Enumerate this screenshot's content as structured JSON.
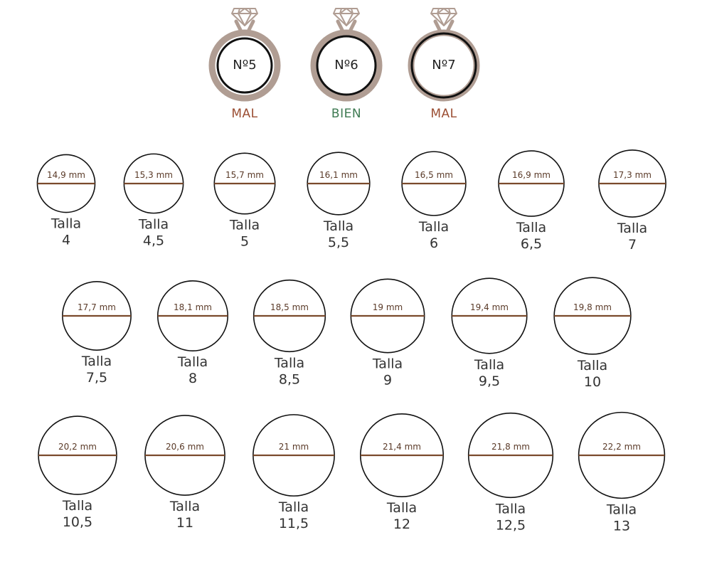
{
  "colors": {
    "ring_band": "#b09d93",
    "circle_stroke": "#111111",
    "diameter_line": "#7a4a2c",
    "diameter_text": "#5a3a28",
    "mal": "#9b4e33",
    "bien": "#3e7a52",
    "size_text": "#333333"
  },
  "size_word": "Talla",
  "comparison": [
    {
      "label": "Nº5",
      "verdict": "MAL",
      "verdict_color": "mal",
      "fit": "too-small"
    },
    {
      "label": "Nº6",
      "verdict": "BIEN",
      "verdict_color": "bien",
      "fit": "exact"
    },
    {
      "label": "Nº7",
      "verdict": "MAL",
      "verdict_color": "mal",
      "fit": "too-large"
    }
  ],
  "sizes": [
    {
      "size": "4",
      "diameter": "14,9 mm",
      "mm": 14.9
    },
    {
      "size": "4,5",
      "diameter": "15,3 mm",
      "mm": 15.3
    },
    {
      "size": "5",
      "diameter": "15,7 mm",
      "mm": 15.7
    },
    {
      "size": "5,5",
      "diameter": "16,1 mm",
      "mm": 16.1
    },
    {
      "size": "6",
      "diameter": "16,5 mm",
      "mm": 16.5
    },
    {
      "size": "6,5",
      "diameter": "16,9 mm",
      "mm": 16.9
    },
    {
      "size": "7",
      "diameter": "17,3 mm",
      "mm": 17.3
    },
    {
      "size": "7,5",
      "diameter": "17,7 mm",
      "mm": 17.7
    },
    {
      "size": "8",
      "diameter": "18,1 mm",
      "mm": 18.1
    },
    {
      "size": "8,5",
      "diameter": "18,5 mm",
      "mm": 18.5
    },
    {
      "size": "9",
      "diameter": "19 mm",
      "mm": 19.0
    },
    {
      "size": "9,5",
      "diameter": "19,4 mm",
      "mm": 19.4
    },
    {
      "size": "10",
      "diameter": "19,8 mm",
      "mm": 19.8
    },
    {
      "size": "10,5",
      "diameter": "20,2 mm",
      "mm": 20.2
    },
    {
      "size": "11",
      "diameter": "20,6 mm",
      "mm": 20.6
    },
    {
      "size": "11,5",
      "diameter": "21 mm",
      "mm": 21.0
    },
    {
      "size": "12",
      "diameter": "21,4 mm",
      "mm": 21.4
    },
    {
      "size": "12,5",
      "diameter": "21,8 mm",
      "mm": 21.8
    },
    {
      "size": "13",
      "diameter": "22,2 mm",
      "mm": 22.2
    }
  ]
}
